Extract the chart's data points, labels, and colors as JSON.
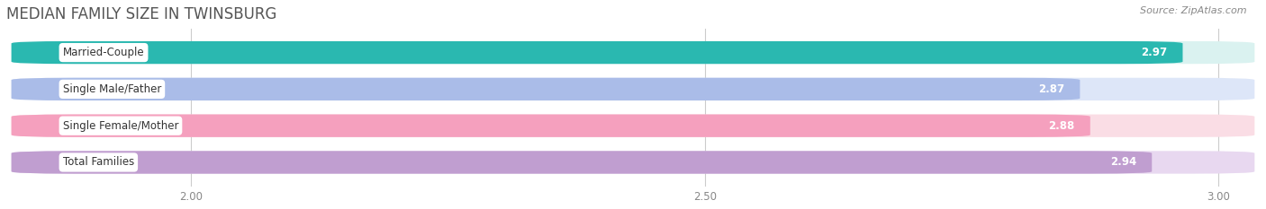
{
  "title": "MEDIAN FAMILY SIZE IN TWINSBURG",
  "source": "Source: ZipAtlas.com",
  "categories": [
    "Married-Couple",
    "Single Male/Father",
    "Single Female/Mother",
    "Total Families"
  ],
  "values": [
    2.97,
    2.87,
    2.88,
    2.94
  ],
  "bar_colors": [
    "#2ab8b0",
    "#aabce8",
    "#f5a0be",
    "#c09ed0"
  ],
  "bar_bg_colors": [
    "#daf2f0",
    "#dde6f8",
    "#fadde5",
    "#e8d8f0"
  ],
  "xmin": 1.82,
  "xmax": 3.04,
  "xticks": [
    2.0,
    2.5,
    3.0
  ],
  "bar_height": 0.62,
  "label_fontsize": 8.5,
  "value_fontsize": 8.5,
  "title_fontsize": 12,
  "source_fontsize": 8,
  "background_color": "#ffffff",
  "title_color": "#555555",
  "source_color": "#888888",
  "tick_color": "#888888"
}
